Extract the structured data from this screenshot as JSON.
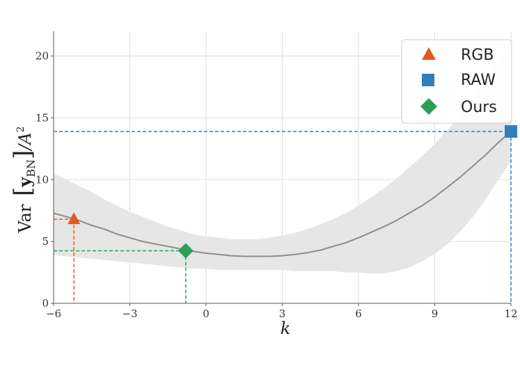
{
  "chart_data": {
    "type": "line",
    "xlabel": "k",
    "ylabel_parts": {
      "prefix": "Var",
      "symbol": "y",
      "subscript": "BN",
      "divider": "/A",
      "power": "2"
    },
    "xlim": [
      -6,
      12
    ],
    "ylim": [
      0,
      22
    ],
    "xticks": [
      -6,
      -3,
      0,
      3,
      6,
      9,
      12
    ],
    "xtick_labels": [
      "−6",
      "−3",
      "0",
      "3",
      "6",
      "9",
      "12"
    ],
    "yticks": [
      0,
      5,
      10,
      15,
      20
    ],
    "ytick_labels": [
      "0",
      "5",
      "10",
      "15",
      "20"
    ],
    "grid": true,
    "legend_position": "top-right",
    "mean_curve": {
      "x": [
        -6,
        -5.5,
        -5,
        -4.5,
        -4,
        -3.5,
        -3,
        -2.5,
        -2,
        -1.5,
        -1,
        -0.5,
        0,
        0.5,
        1,
        1.5,
        2,
        2.5,
        3,
        3.5,
        4,
        4.5,
        5,
        5.5,
        6,
        6.5,
        7,
        7.5,
        8,
        8.5,
        9,
        9.5,
        10,
        10.5,
        11,
        11.5,
        12
      ],
      "y": [
        7.3,
        7.0,
        6.7,
        6.3,
        6.0,
        5.6,
        5.3,
        5.0,
        4.8,
        4.6,
        4.4,
        4.2,
        4.05,
        3.95,
        3.85,
        3.8,
        3.8,
        3.8,
        3.85,
        3.95,
        4.1,
        4.3,
        4.6,
        4.9,
        5.3,
        5.75,
        6.2,
        6.7,
        7.3,
        7.9,
        8.6,
        9.4,
        10.2,
        11.1,
        12.0,
        13.0,
        13.9
      ]
    },
    "band_upper": [
      10.5,
      10.0,
      9.5,
      9.0,
      8.4,
      7.9,
      7.4,
      7.0,
      6.6,
      6.2,
      5.9,
      5.6,
      5.4,
      5.3,
      5.2,
      5.2,
      5.2,
      5.3,
      5.5,
      5.7,
      6.0,
      6.4,
      6.8,
      7.3,
      7.9,
      8.6,
      9.3,
      10.1,
      11.0,
      11.9,
      12.9,
      14.0,
      15.2,
      16.6,
      18.2,
      19.6,
      20.8
    ],
    "band_lower": [
      3.9,
      3.8,
      3.7,
      3.6,
      3.5,
      3.4,
      3.3,
      3.2,
      3.1,
      3.0,
      2.9,
      2.8,
      2.8,
      2.7,
      2.7,
      2.7,
      2.7,
      2.7,
      2.7,
      2.6,
      2.6,
      2.6,
      2.6,
      2.5,
      2.5,
      2.4,
      2.4,
      2.6,
      2.9,
      3.4,
      4.0,
      4.8,
      5.8,
      7.0,
      8.4,
      10.0,
      11.5
    ],
    "series": [
      {
        "name": "RGB",
        "x": -5.2,
        "y": 6.8,
        "marker": "triangle",
        "color": "#e2581c"
      },
      {
        "name": "RAW",
        "x": 12.0,
        "y": 13.9,
        "marker": "square",
        "color": "#2f7fc1"
      },
      {
        "name": "Ours",
        "x": -0.8,
        "y": 4.25,
        "marker": "diamond",
        "color": "#2e9e55"
      }
    ],
    "band_color": "#e6e6e6",
    "curve_color": "#8c8c8c"
  }
}
